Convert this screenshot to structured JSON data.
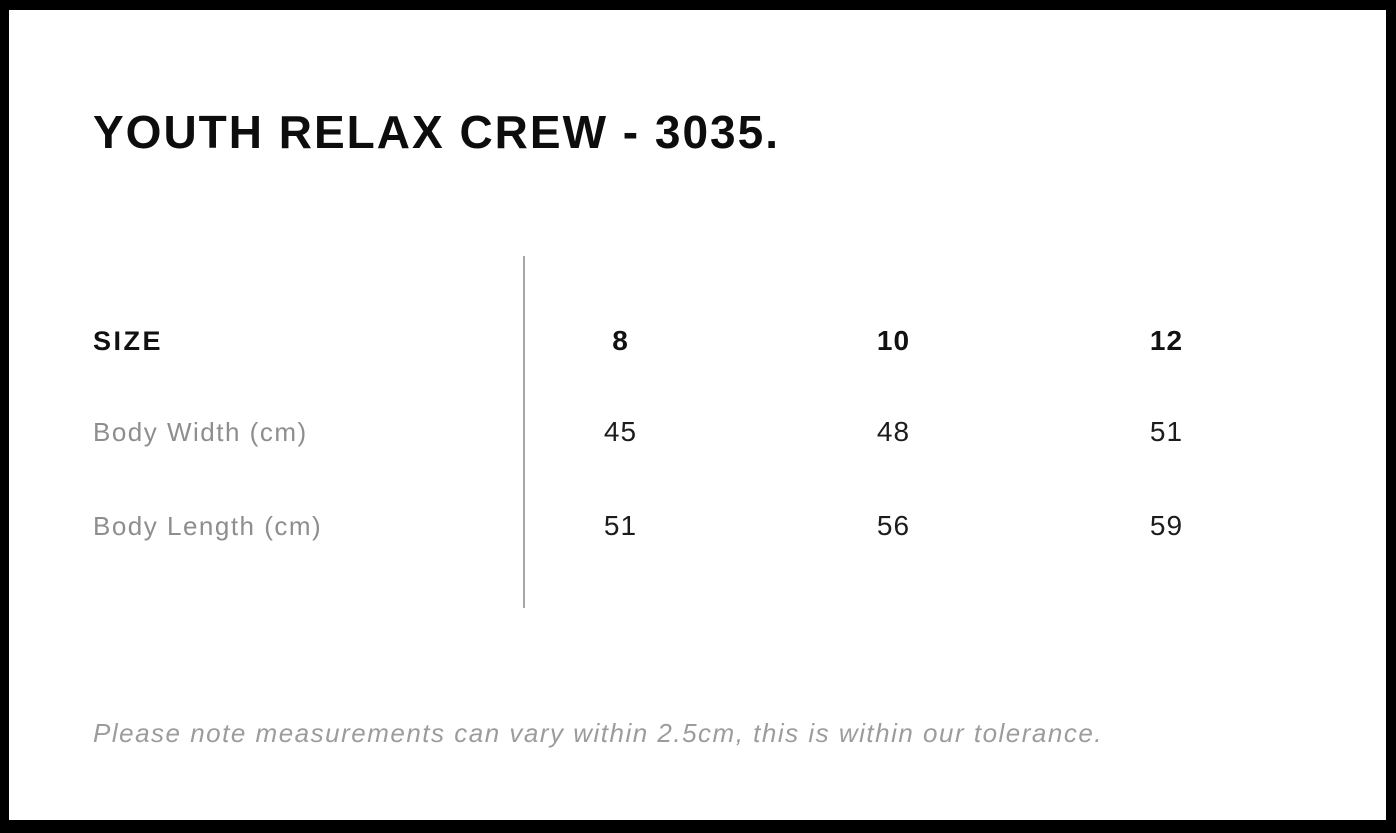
{
  "page": {
    "title": "YOUTH RELAX CREW - 3035.",
    "note": "Please note measurements can vary within 2.5cm, this is within our tolerance."
  },
  "size_chart": {
    "header_label": "SIZE",
    "sizes": [
      "8",
      "10",
      "12"
    ],
    "rows": [
      {
        "label": "Body Width (cm)",
        "values": [
          "45",
          "48",
          "51"
        ]
      },
      {
        "label": "Body Length (cm)",
        "values": [
          "51",
          "56",
          "59"
        ]
      }
    ]
  },
  "chart_data": {
    "type": "table",
    "title": "YOUTH RELAX CREW - 3035.",
    "categories": [
      "8",
      "10",
      "12"
    ],
    "series": [
      {
        "name": "Body Width (cm)",
        "values": [
          45,
          48,
          51
        ]
      },
      {
        "name": "Body Length (cm)",
        "values": [
          51,
          56,
          59
        ]
      }
    ],
    "annotations": [
      "Please note measurements can vary within 2.5cm, this is within our tolerance."
    ]
  },
  "colors": {
    "border_background": "#000000",
    "panel_background": "#ffffff",
    "heading_text": "#0d0d0d",
    "value_text": "#1c1c1c",
    "muted_label_text": "#8e8e8e",
    "note_text": "#9c9c9c",
    "divider": "#a6a6a6"
  }
}
